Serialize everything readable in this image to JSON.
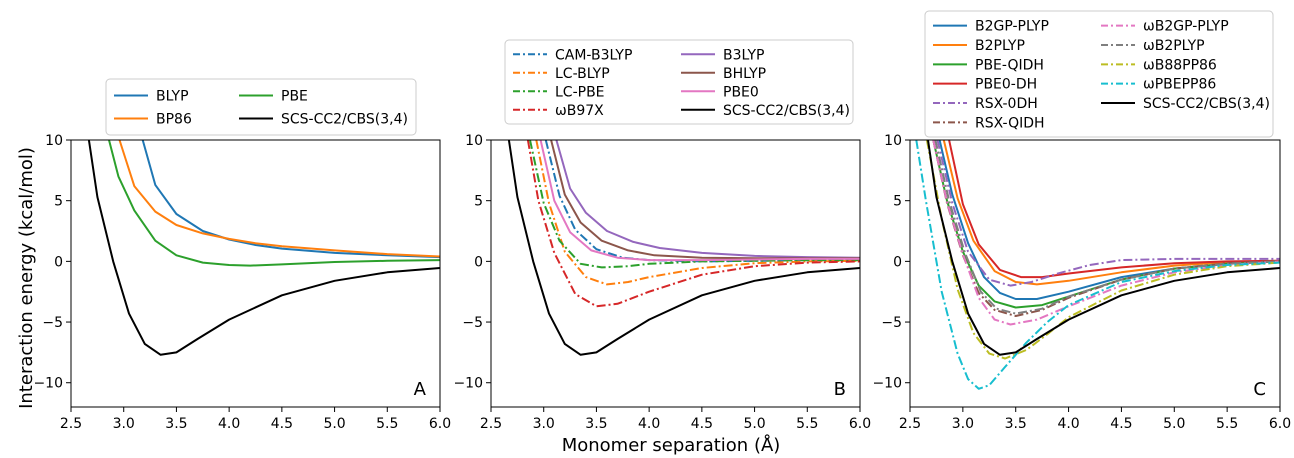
{
  "figure": {
    "xlabel": "Monomer separation (Å)",
    "ylabel": "Interaction energy (kcal/mol)"
  },
  "chart_data": [
    {
      "type": "line",
      "panel": "A",
      "xlim": [
        2.5,
        6.0
      ],
      "ylim": [
        -12,
        10
      ],
      "xticks": [
        "2.5",
        "3.0",
        "3.5",
        "4.0",
        "4.5",
        "5.0",
        "5.5",
        "6.0"
      ],
      "yticks": [
        "10",
        "5",
        "0",
        "−5",
        "−10"
      ],
      "grid": false,
      "legend_placement": "above",
      "legend_columns": 2,
      "series": [
        {
          "name": "BLYP",
          "color": "#1f77b4",
          "dash": "solid",
          "x": [
            3.18,
            3.3,
            3.5,
            3.75,
            4.0,
            4.25,
            4.5,
            5.0,
            5.5,
            6.0
          ],
          "y": [
            10,
            6.3,
            3.9,
            2.5,
            1.8,
            1.35,
            1.05,
            0.7,
            0.5,
            0.35
          ]
        },
        {
          "name": "BP86",
          "color": "#ff7f0e",
          "dash": "solid",
          "x": [
            2.96,
            3.1,
            3.3,
            3.5,
            3.75,
            4.0,
            4.25,
            4.5,
            5.0,
            5.5,
            6.0
          ],
          "y": [
            10,
            6.2,
            4.1,
            3.0,
            2.3,
            1.85,
            1.5,
            1.25,
            0.9,
            0.6,
            0.4
          ]
        },
        {
          "name": "PBE",
          "color": "#2ca02c",
          "dash": "solid",
          "x": [
            2.86,
            2.95,
            3.1,
            3.3,
            3.5,
            3.75,
            4.0,
            4.2,
            4.5,
            5.0,
            5.5,
            6.0
          ],
          "y": [
            10,
            7.0,
            4.2,
            1.7,
            0.5,
            -0.1,
            -0.3,
            -0.35,
            -0.25,
            -0.05,
            0.05,
            0.1
          ]
        },
        {
          "name": "SCS-CC2/CBS(3,4)",
          "color": "#000000",
          "dash": "solid",
          "x": [
            2.67,
            2.75,
            2.9,
            3.05,
            3.2,
            3.35,
            3.5,
            3.7,
            4.0,
            4.5,
            5.0,
            5.5,
            6.0
          ],
          "y": [
            10,
            5.3,
            0.0,
            -4.3,
            -6.8,
            -7.7,
            -7.5,
            -6.4,
            -4.8,
            -2.8,
            -1.6,
            -0.9,
            -0.55
          ]
        }
      ],
      "annotation": "A"
    },
    {
      "type": "line",
      "panel": "B",
      "xlim": [
        2.5,
        6.0
      ],
      "ylim": [
        -12,
        10
      ],
      "xticks": [
        "2.5",
        "3.0",
        "3.5",
        "4.0",
        "4.5",
        "5.0",
        "5.5",
        "6.0"
      ],
      "yticks": [
        "10",
        "5",
        "0",
        "−5",
        "−10"
      ],
      "grid": false,
      "legend_placement": "above",
      "legend_columns": 2,
      "series": [
        {
          "name": "CAM-B3LYP",
          "color": "#1f77b4",
          "dash": "dashdot",
          "x": [
            3.02,
            3.15,
            3.3,
            3.5,
            3.75,
            4.0,
            4.5,
            5.0,
            5.5,
            6.0
          ],
          "y": [
            10,
            5.4,
            2.6,
            1.0,
            0.3,
            0.1,
            0.0,
            0.05,
            0.1,
            0.15
          ]
        },
        {
          "name": "LC-BLYP",
          "color": "#ff7f0e",
          "dash": "dashdot",
          "x": [
            2.93,
            3.05,
            3.2,
            3.4,
            3.6,
            3.8,
            4.0,
            4.5,
            5.0,
            5.5,
            6.0
          ],
          "y": [
            10,
            4.8,
            0.8,
            -1.3,
            -1.9,
            -1.7,
            -1.3,
            -0.55,
            -0.15,
            0.0,
            0.05
          ]
        },
        {
          "name": "LC-PBE",
          "color": "#2ca02c",
          "dash": "dashdot",
          "x": [
            2.87,
            3.0,
            3.15,
            3.35,
            3.55,
            3.8,
            4.0,
            4.5,
            5.0,
            5.5,
            6.0
          ],
          "y": [
            10,
            4.8,
            1.7,
            -0.2,
            -0.5,
            -0.4,
            -0.2,
            0.0,
            0.05,
            0.1,
            0.1
          ]
        },
        {
          "name": "ωB97X",
          "color": "#d62728",
          "dash": "dashdot",
          "x": [
            2.85,
            2.95,
            3.1,
            3.3,
            3.5,
            3.7,
            4.0,
            4.5,
            5.0,
            5.5,
            6.0
          ],
          "y": [
            10,
            5.0,
            0.7,
            -2.7,
            -3.7,
            -3.5,
            -2.5,
            -1.1,
            -0.4,
            -0.1,
            0.0
          ]
        },
        {
          "name": "B3LYP",
          "color": "#9467bd",
          "dash": "solid",
          "x": [
            3.12,
            3.25,
            3.4,
            3.6,
            3.85,
            4.1,
            4.5,
            5.0,
            5.5,
            6.0
          ],
          "y": [
            10,
            6.0,
            4.0,
            2.5,
            1.6,
            1.1,
            0.7,
            0.45,
            0.35,
            0.3
          ]
        },
        {
          "name": "BHLYP",
          "color": "#8c564b",
          "dash": "solid",
          "x": [
            3.07,
            3.2,
            3.35,
            3.55,
            3.8,
            4.05,
            4.5,
            5.0,
            5.5,
            6.0
          ],
          "y": [
            10,
            5.5,
            3.2,
            1.7,
            0.9,
            0.5,
            0.3,
            0.25,
            0.25,
            0.25
          ]
        },
        {
          "name": "PBE0",
          "color": "#e377c2",
          "dash": "solid",
          "x": [
            2.97,
            3.1,
            3.25,
            3.45,
            3.7,
            4.0,
            4.5,
            5.0,
            5.5,
            6.0
          ],
          "y": [
            10,
            5.0,
            2.4,
            0.9,
            0.3,
            0.1,
            0.1,
            0.15,
            0.2,
            0.2
          ]
        },
        {
          "name": "SCS-CC2/CBS(3,4)",
          "color": "#000000",
          "dash": "solid",
          "x": [
            2.67,
            2.75,
            2.9,
            3.05,
            3.2,
            3.35,
            3.5,
            3.7,
            4.0,
            4.5,
            5.0,
            5.5,
            6.0
          ],
          "y": [
            10,
            5.3,
            0.0,
            -4.3,
            -6.8,
            -7.7,
            -7.5,
            -6.4,
            -4.8,
            -2.8,
            -1.6,
            -0.9,
            -0.55
          ]
        }
      ],
      "annotation": "B"
    },
    {
      "type": "line",
      "panel": "C",
      "xlim": [
        2.5,
        6.0
      ],
      "ylim": [
        -12,
        10
      ],
      "xticks": [
        "2.5",
        "3.0",
        "3.5",
        "4.0",
        "4.5",
        "5.0",
        "5.5",
        "6.0"
      ],
      "yticks": [
        "10",
        "5",
        "0",
        "−5",
        "−10"
      ],
      "grid": false,
      "legend_placement": "above",
      "legend_columns": 2,
      "series": [
        {
          "name": "B2GP-PLYP",
          "color": "#1f77b4",
          "dash": "solid",
          "x": [
            2.78,
            2.9,
            3.05,
            3.2,
            3.35,
            3.5,
            3.7,
            4.0,
            4.5,
            5.0,
            5.5,
            6.0
          ],
          "y": [
            10,
            5.5,
            1.5,
            -1.3,
            -2.6,
            -3.1,
            -3.1,
            -2.5,
            -1.3,
            -0.6,
            -0.2,
            0.0
          ]
        },
        {
          "name": "B2PLYP",
          "color": "#ff7f0e",
          "dash": "solid",
          "x": [
            2.82,
            2.95,
            3.1,
            3.3,
            3.5,
            3.7,
            4.0,
            4.5,
            5.0,
            5.5,
            6.0
          ],
          "y": [
            10,
            5.2,
            1.7,
            -0.8,
            -1.7,
            -1.9,
            -1.6,
            -0.9,
            -0.35,
            -0.05,
            0.05
          ]
        },
        {
          "name": "PBE-QIDH",
          "color": "#2ca02c",
          "dash": "solid",
          "x": [
            2.72,
            2.85,
            3.0,
            3.15,
            3.3,
            3.5,
            3.75,
            4.0,
            4.5,
            5.0,
            5.5,
            6.0
          ],
          "y": [
            10,
            5.0,
            0.8,
            -2.0,
            -3.3,
            -3.8,
            -3.6,
            -2.9,
            -1.5,
            -0.6,
            -0.2,
            0.0
          ]
        },
        {
          "name": "PBE0-DH",
          "color": "#d62728",
          "dash": "solid",
          "x": [
            2.87,
            3.0,
            3.15,
            3.35,
            3.55,
            3.75,
            4.0,
            4.5,
            5.0,
            5.5,
            6.0
          ],
          "y": [
            10,
            4.7,
            1.4,
            -0.7,
            -1.3,
            -1.3,
            -1.0,
            -0.5,
            -0.15,
            0.0,
            0.05
          ]
        },
        {
          "name": "RSX-0DH",
          "color": "#9467bd",
          "dash": "dashdot",
          "x": [
            2.76,
            2.9,
            3.05,
            3.25,
            3.45,
            3.65,
            3.9,
            4.2,
            4.5,
            5.0,
            5.5,
            6.0
          ],
          "y": [
            10,
            4.8,
            0.8,
            -1.5,
            -2.0,
            -1.7,
            -1.0,
            -0.3,
            0.1,
            0.2,
            0.2,
            0.2
          ]
        },
        {
          "name": "RSX-QIDH",
          "color": "#8c564b",
          "dash": "dashdot",
          "x": [
            2.72,
            2.85,
            3.0,
            3.15,
            3.3,
            3.5,
            3.75,
            4.0,
            4.5,
            5.0,
            5.5,
            6.0
          ],
          "y": [
            10,
            4.8,
            0.5,
            -2.6,
            -4.0,
            -4.5,
            -4.0,
            -3.0,
            -1.5,
            -0.6,
            -0.15,
            0.05
          ]
        },
        {
          "name": "ωB2GP-PLYP",
          "color": "#e377c2",
          "dash": "dashdot",
          "x": [
            2.72,
            2.85,
            3.0,
            3.15,
            3.3,
            3.45,
            3.7,
            4.0,
            4.5,
            5.0,
            5.5,
            6.0
          ],
          "y": [
            10,
            4.9,
            0.6,
            -3.0,
            -4.8,
            -5.2,
            -4.8,
            -3.7,
            -2.0,
            -0.9,
            -0.3,
            0.0
          ]
        },
        {
          "name": "ωB2PLYP",
          "color": "#7f7f7f",
          "dash": "dashdot",
          "x": [
            2.74,
            2.87,
            3.02,
            3.17,
            3.32,
            3.5,
            3.75,
            4.0,
            4.5,
            5.0,
            5.5,
            6.0
          ],
          "y": [
            10,
            5.0,
            0.7,
            -2.5,
            -3.9,
            -4.3,
            -3.9,
            -2.9,
            -1.5,
            -0.6,
            -0.2,
            0.0
          ]
        },
        {
          "name": "ωB88PP86",
          "color": "#bcbd22",
          "dash": "dashdot",
          "x": [
            2.66,
            2.8,
            2.95,
            3.1,
            3.25,
            3.4,
            3.6,
            3.8,
            4.0,
            4.5,
            5.0,
            5.5,
            6.0
          ],
          "y": [
            10,
            3.5,
            -2.3,
            -5.9,
            -7.6,
            -8.0,
            -7.3,
            -6.0,
            -4.6,
            -2.4,
            -1.1,
            -0.4,
            -0.1
          ]
        },
        {
          "name": "ωPBEPP86",
          "color": "#17becf",
          "dash": "dashdot",
          "x": [
            2.56,
            2.65,
            2.8,
            2.95,
            3.05,
            3.15,
            3.25,
            3.4,
            3.6,
            3.8,
            4.0,
            4.5,
            5.0,
            5.5,
            6.0
          ],
          "y": [
            10,
            5.0,
            -2.5,
            -7.6,
            -9.7,
            -10.5,
            -10.2,
            -8.7,
            -6.7,
            -5.0,
            -3.6,
            -1.7,
            -0.8,
            -0.3,
            -0.1
          ]
        },
        {
          "name": "SCS-CC2/CBS(3,4)",
          "color": "#000000",
          "dash": "solid",
          "x": [
            2.67,
            2.75,
            2.9,
            3.05,
            3.2,
            3.35,
            3.5,
            3.7,
            4.0,
            4.5,
            5.0,
            5.5,
            6.0
          ],
          "y": [
            10,
            5.3,
            0.0,
            -4.3,
            -6.8,
            -7.7,
            -7.5,
            -6.4,
            -4.8,
            -2.8,
            -1.6,
            -0.9,
            -0.55
          ]
        }
      ],
      "annotation": "C"
    }
  ]
}
